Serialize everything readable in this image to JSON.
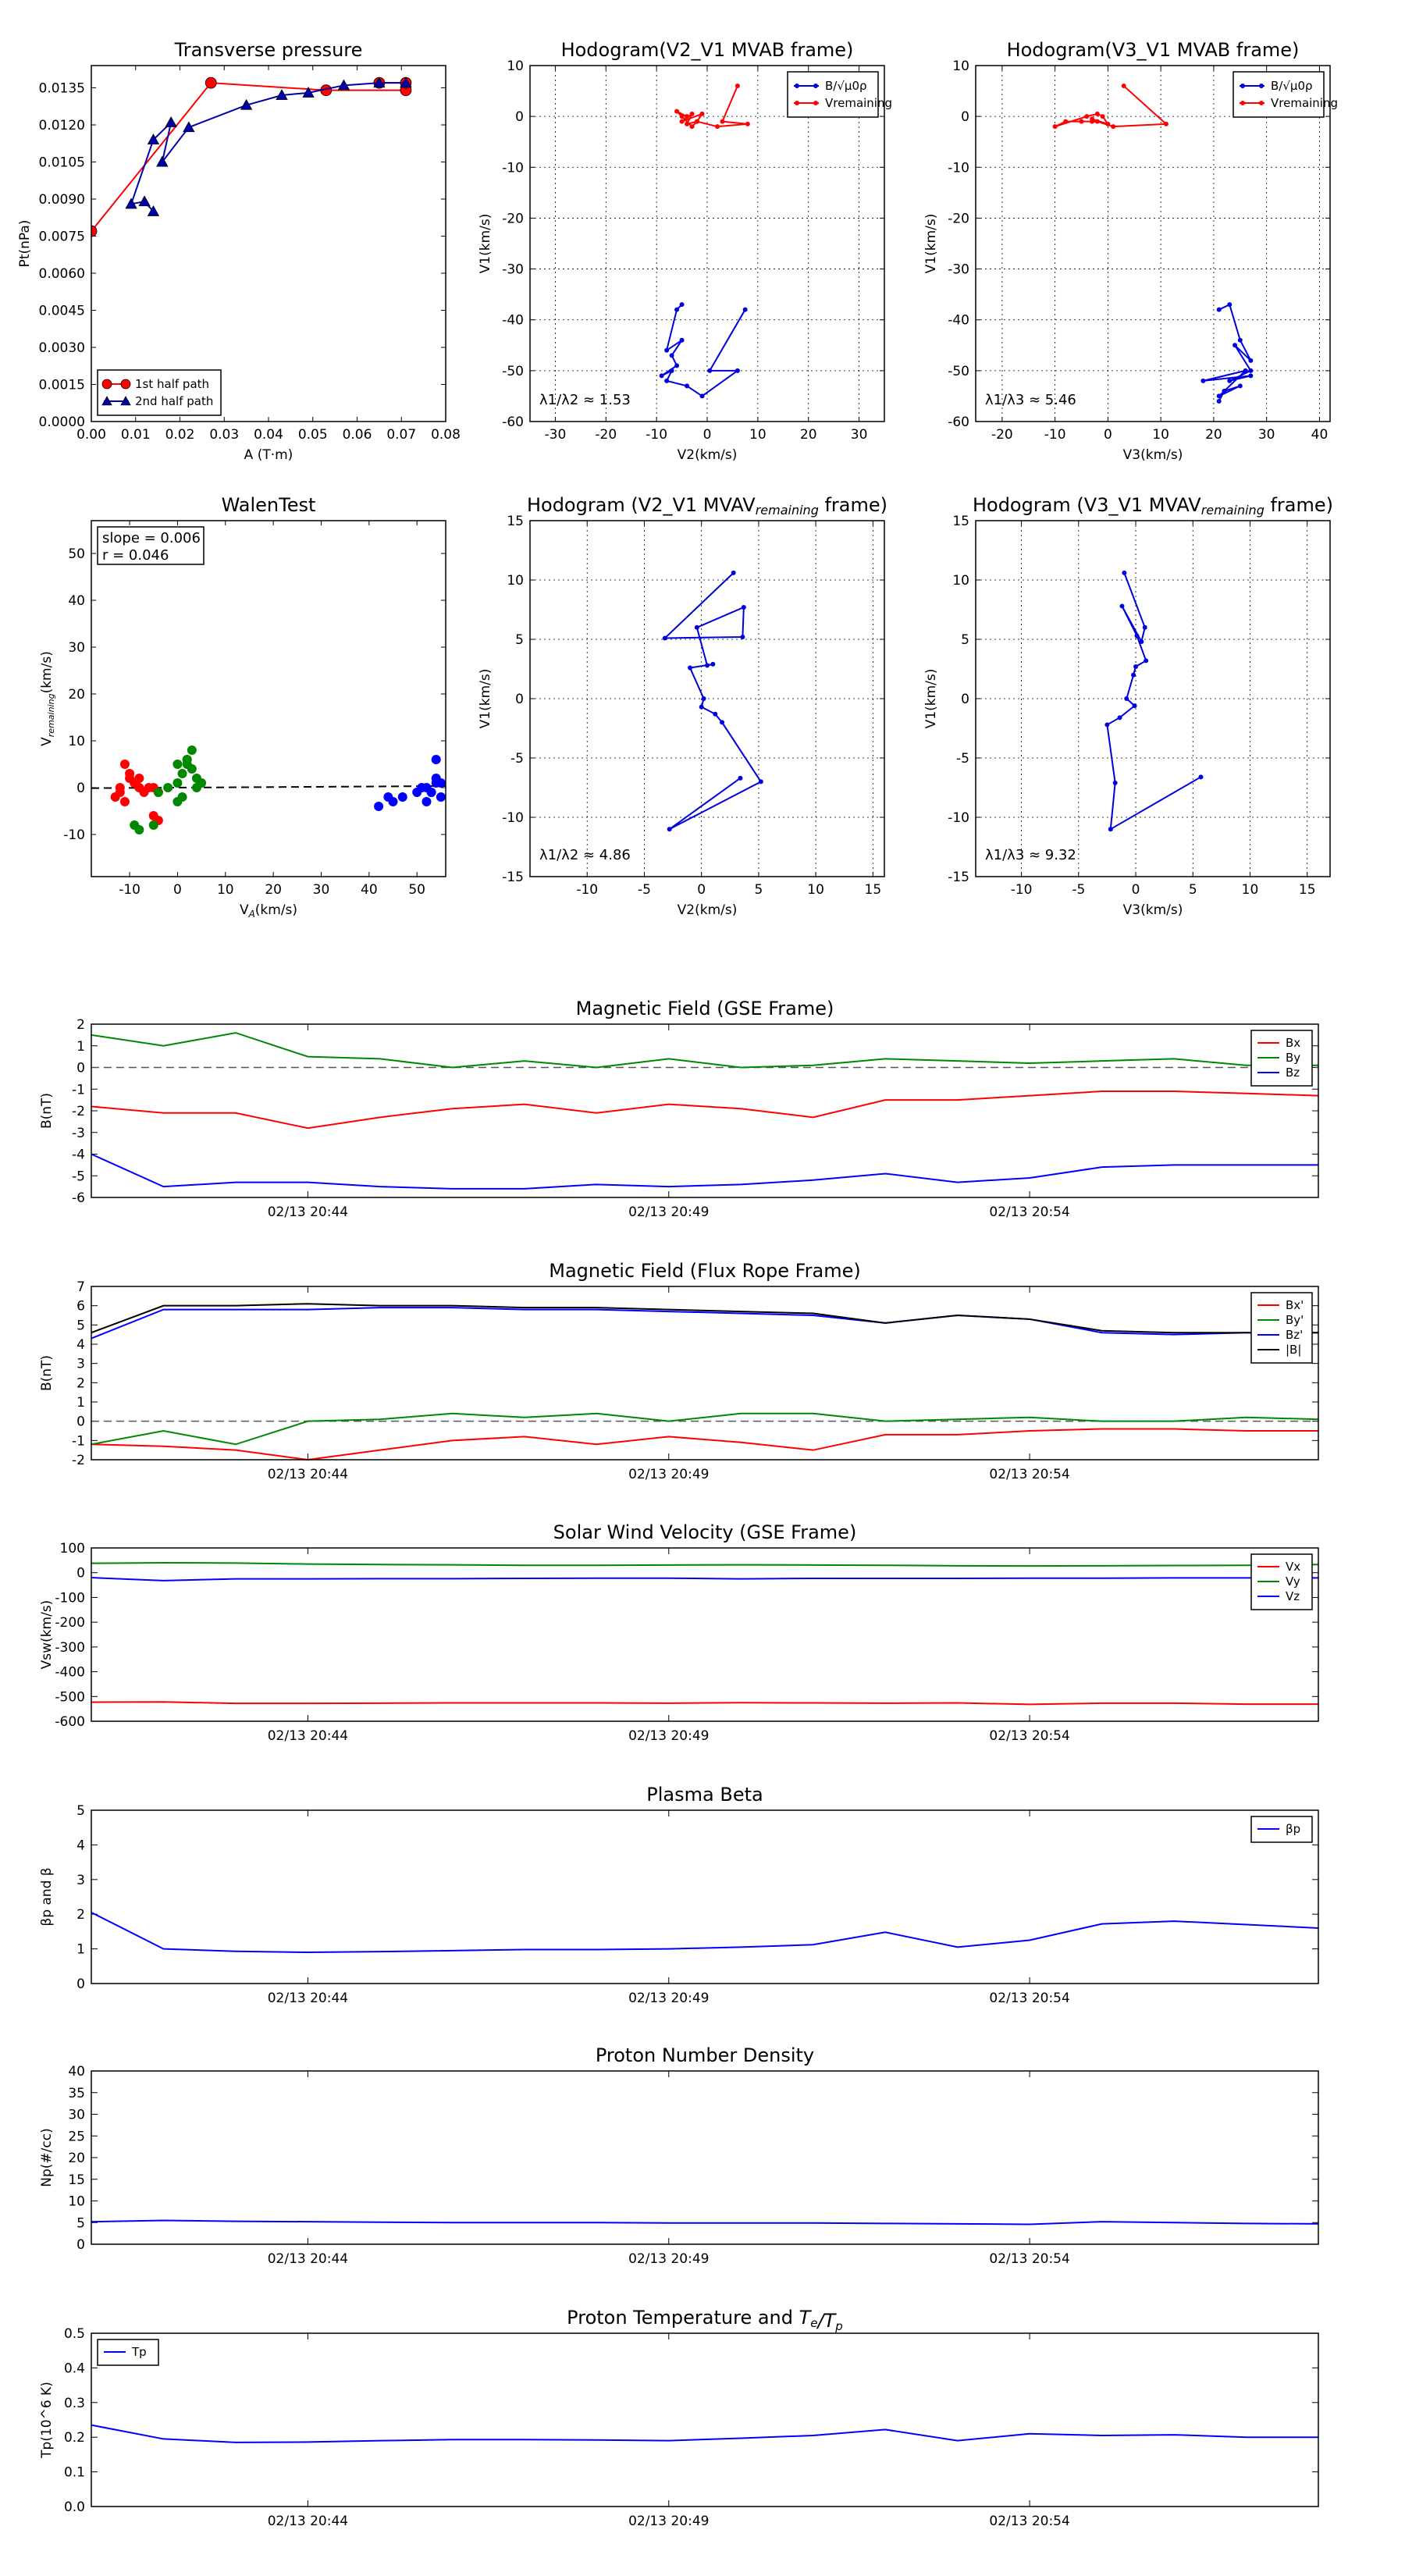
{
  "chart_data": [
    {
      "id": "tp",
      "type": "line",
      "title": "Transverse pressure",
      "xlabel": "A (T·m)",
      "ylabel": "Pt(nPa)",
      "xlim": [
        0,
        0.08
      ],
      "ylim": [
        0,
        0.0144
      ],
      "xticks": [
        "0.00",
        "0.01",
        "0.02",
        "0.03",
        "0.04",
        "0.05",
        "0.06",
        "0.07",
        "0.08"
      ],
      "yticks": [
        "0.0000",
        "0.0015",
        "0.0030",
        "0.0045",
        "0.0060",
        "0.0075",
        "0.0090",
        "0.0105",
        "0.0120",
        "0.0135"
      ],
      "grid": false,
      "legend": "lower-left",
      "series": [
        {
          "name": "1st half path",
          "color": "#ff0000",
          "marker": "circle",
          "x": [
            0.0,
            0.027,
            0.053,
            0.071,
            0.071,
            0.065
          ],
          "y": [
            0.0077,
            0.0137,
            0.0134,
            0.0134,
            0.0137,
            0.0137
          ]
        },
        {
          "name": "2nd half path",
          "color": "#0000aa",
          "marker": "triangle",
          "x": [
            0.014,
            0.012,
            0.009,
            0.014,
            0.018,
            0.016,
            0.022,
            0.035,
            0.043,
            0.049,
            0.057,
            0.065,
            0.071
          ],
          "y": [
            0.0085,
            0.0089,
            0.0088,
            0.0114,
            0.0121,
            0.0105,
            0.0119,
            0.0128,
            0.0132,
            0.0133,
            0.0136,
            0.0137,
            0.0137
          ]
        }
      ]
    },
    {
      "id": "h1",
      "type": "line",
      "title": "Hodogram(V2_V1 MVAB frame)",
      "xlabel": "V2(km/s)",
      "ylabel": "V1(km/s)",
      "xlim": [
        -35,
        35
      ],
      "ylim": [
        -60,
        10
      ],
      "xticks": [
        "-30",
        "-20",
        "-10",
        "0",
        "10",
        "20",
        "30"
      ],
      "yticks": [
        "-60",
        "-50",
        "-40",
        "-30",
        "-20",
        "-10",
        "0",
        "10"
      ],
      "grid": true,
      "legend": "upper-right",
      "annotation": "λ1/λ2 ≈ 1.53",
      "series": [
        {
          "name": "B/√μ0ρ",
          "color": "#0000dd",
          "x": [
            7.5,
            0.5,
            6,
            -1,
            -4,
            -8,
            -7,
            -9,
            -6,
            -7,
            -5,
            -8,
            -6,
            -5
          ],
          "y": [
            -38,
            -50,
            -50,
            -55,
            -53,
            -52,
            -50,
            -51,
            -49,
            -47,
            -44,
            -46,
            -38,
            -37
          ]
        },
        {
          "name": "Vremaining",
          "color": "#ff0000",
          "x": [
            6,
            3,
            8,
            2,
            -2,
            -4,
            -3,
            -5,
            -1,
            -2,
            -3,
            -5,
            -6,
            -4
          ],
          "y": [
            6,
            -1,
            -1.5,
            -2,
            -1,
            -1.5,
            0.5,
            -1,
            0.5,
            -1,
            -2,
            0,
            1,
            0
          ]
        }
      ]
    },
    {
      "id": "h2",
      "type": "line",
      "title": "Hodogram(V3_V1 MVAB frame)",
      "xlabel": "V3(km/s)",
      "ylabel": "V1(km/s)",
      "xlim": [
        -25,
        42
      ],
      "ylim": [
        -60,
        10
      ],
      "xticks": [
        "-20",
        "-10",
        "0",
        "10",
        "20",
        "30",
        "40"
      ],
      "yticks": [
        "-60",
        "-50",
        "-40",
        "-30",
        "-20",
        "-10",
        "0",
        "10"
      ],
      "grid": true,
      "legend": "upper-right",
      "annotation": "λ1/λ3 ≈ 5.46",
      "series": [
        {
          "name": "B/√μ0ρ",
          "color": "#0000dd",
          "x": [
            21,
            23,
            25,
            27,
            24,
            27,
            23,
            27,
            18,
            26,
            21,
            25,
            22,
            21
          ],
          "y": [
            -38,
            -37,
            -44,
            -48,
            -45,
            -50,
            -52,
            -51,
            -52,
            -50,
            -55,
            -53,
            -54,
            -56
          ]
        },
        {
          "name": "Vremaining",
          "color": "#ff0000",
          "x": [
            3,
            11,
            1,
            -2,
            -5,
            -3,
            -8,
            -10,
            -4,
            -2,
            -1,
            0,
            -3
          ],
          "y": [
            6,
            -1.5,
            -2,
            -1,
            -1,
            -1,
            -1,
            -2,
            0,
            0.5,
            0,
            -1.5,
            -0.5
          ]
        }
      ]
    },
    {
      "id": "walen",
      "type": "scatter",
      "title": "WalenTest",
      "xlabel": "VA(km/s)",
      "ylabel": "Vremaining(km/s)",
      "xlim": [
        -18,
        56
      ],
      "ylim": [
        -19,
        57
      ],
      "xticks": [
        "-10",
        "0",
        "10",
        "20",
        "30",
        "40",
        "50"
      ],
      "yticks": [
        "-10",
        "0",
        "10",
        "20",
        "30",
        "40",
        "50"
      ],
      "grid": false,
      "annotation": [
        "slope = 0.006",
        "r = 0.046"
      ],
      "fit_line": {
        "slope": 0.006,
        "intercept": 0.0
      },
      "series": [
        {
          "color": "#ff0000",
          "x": [
            -13,
            -12,
            -11,
            -10,
            -9,
            -8,
            -7,
            -6,
            -5,
            -4,
            -10,
            -9,
            -5,
            -4,
            -8,
            -11,
            -12
          ],
          "y": [
            -2,
            -1,
            5,
            2,
            1,
            0,
            -1,
            0,
            -6,
            -7,
            3,
            1,
            0,
            -1,
            2,
            -3,
            0
          ]
        },
        {
          "color": "#008800",
          "x": [
            -9,
            -8,
            -5,
            -4,
            -2,
            0,
            1,
            2,
            3,
            4,
            5,
            0,
            1,
            2,
            3,
            4,
            0,
            2
          ],
          "y": [
            -8,
            -9,
            -8,
            -1,
            0,
            1,
            3,
            5,
            8,
            2,
            1,
            -3,
            -2,
            6,
            4,
            0,
            5,
            6
          ]
        },
        {
          "color": "#0000ff",
          "x": [
            42,
            44,
            45,
            47,
            50,
            51,
            52,
            53,
            54,
            55,
            54,
            53,
            52,
            55,
            54
          ],
          "y": [
            -4,
            -2,
            -3,
            -2,
            -1,
            0,
            -3,
            -1,
            6,
            1,
            2,
            -1,
            0,
            -2,
            1
          ]
        }
      ]
    },
    {
      "id": "h3",
      "type": "line",
      "title": "Hodogram (V2_V1 MVAVremaining frame)",
      "xlabel": "V2(km/s)",
      "ylabel": "V1(km/s)",
      "xlim": [
        -15,
        16
      ],
      "ylim": [
        -15,
        15
      ],
      "xticks": [
        "-10",
        "-5",
        "0",
        "5",
        "10",
        "15"
      ],
      "yticks": [
        "-15",
        "-10",
        "-5",
        "0",
        "5",
        "10",
        "15"
      ],
      "grid": true,
      "annotation": "λ1/λ2 ≈ 4.86",
      "series": [
        {
          "color": "#0000dd",
          "x": [
            2.8,
            -3.2,
            3.6,
            3.7,
            -0.4,
            0.5,
            1.0,
            -1.0,
            0.2,
            0.0,
            1.2,
            1.8,
            5.2,
            -2.8,
            3.4
          ],
          "y": [
            10.6,
            5.1,
            5.2,
            7.7,
            6.0,
            2.8,
            2.9,
            2.6,
            0.0,
            -0.7,
            -1.3,
            -2.0,
            -7.0,
            -11.0,
            -6.7
          ]
        }
      ]
    },
    {
      "id": "h4",
      "type": "line",
      "title": "Hodogram (V3_V1 MVAVremaining frame)",
      "xlabel": "V3(km/s)",
      "ylabel": "V1(km/s)",
      "xlim": [
        -14,
        17
      ],
      "ylim": [
        -15,
        15
      ],
      "xticks": [
        "-10",
        "-5",
        "0",
        "5",
        "10",
        "15"
      ],
      "yticks": [
        "-15",
        "-10",
        "-5",
        "0",
        "5",
        "10",
        "15"
      ],
      "grid": true,
      "annotation": "λ1/λ3 ≈ 9.32",
      "series": [
        {
          "color": "#0000dd",
          "x": [
            -1.0,
            0.8,
            0.5,
            -1.2,
            0.1,
            0.9,
            0.0,
            -0.2,
            -0.8,
            -0.1,
            -1.4,
            -2.5,
            -1.8,
            -2.2,
            5.7
          ],
          "y": [
            10.6,
            6.0,
            4.8,
            7.8,
            5.3,
            3.2,
            2.7,
            2.0,
            0.0,
            -0.6,
            -1.6,
            -2.2,
            -7.1,
            -11.0,
            -6.6
          ]
        }
      ]
    },
    {
      "id": "mag_gse",
      "type": "line",
      "title": "Magnetic Field (GSE Frame)",
      "ylabel": "B(nT)",
      "ylim": [
        -6,
        2
      ],
      "yticks": [
        "-6",
        "-5",
        "-4",
        "-3",
        "-2",
        "-1",
        "0",
        "1",
        "2"
      ],
      "xticks": [
        "02/13 20:44",
        "02/13 20:49",
        "02/13 20:54"
      ],
      "xtick_pos": [
        3,
        8,
        13
      ],
      "npoints": 18,
      "zero_line": true,
      "legend": "upper-right",
      "series": [
        {
          "name": "Bx",
          "color": "#ff0000",
          "values": [
            -1.8,
            -2.1,
            -2.1,
            -2.8,
            -2.3,
            -1.9,
            -1.7,
            -2.1,
            -1.7,
            -1.9,
            -2.3,
            -1.5,
            -1.5,
            -1.3,
            -1.1,
            -1.1,
            -1.2,
            -1.3
          ]
        },
        {
          "name": "By",
          "color": "#008800",
          "values": [
            1.5,
            1.0,
            1.6,
            0.5,
            0.4,
            0.0,
            0.3,
            0.0,
            0.4,
            0.0,
            0.1,
            0.4,
            0.3,
            0.2,
            0.3,
            0.4,
            0.1,
            0.1
          ]
        },
        {
          "name": "Bz",
          "color": "#0000ff",
          "values": [
            -4.0,
            -5.5,
            -5.3,
            -5.3,
            -5.5,
            -5.6,
            -5.6,
            -5.4,
            -5.5,
            -5.4,
            -5.2,
            -4.9,
            -5.3,
            -5.1,
            -4.6,
            -4.5,
            -4.5,
            -4.5
          ]
        }
      ]
    },
    {
      "id": "mag_fr",
      "type": "line",
      "title": "Magnetic Field (Flux Rope Frame)",
      "ylabel": "B(nT)",
      "ylim": [
        -2,
        7
      ],
      "yticks": [
        "-2",
        "-1",
        "0",
        "1",
        "2",
        "3",
        "4",
        "5",
        "6",
        "7"
      ],
      "xticks": [
        "02/13 20:44",
        "02/13 20:49",
        "02/13 20:54"
      ],
      "xtick_pos": [
        3,
        8,
        13
      ],
      "npoints": 18,
      "zero_line": true,
      "legend": "upper-right",
      "series": [
        {
          "name": "Bx'",
          "color": "#ff0000",
          "values": [
            -1.2,
            -1.3,
            -1.5,
            -2.0,
            -1.5,
            -1.0,
            -0.8,
            -1.2,
            -0.8,
            -1.1,
            -1.5,
            -0.7,
            -0.7,
            -0.5,
            -0.4,
            -0.4,
            -0.5,
            -0.5
          ]
        },
        {
          "name": "By'",
          "color": "#008800",
          "values": [
            -1.2,
            -0.5,
            -1.2,
            0.0,
            0.1,
            0.4,
            0.2,
            0.4,
            0.0,
            0.4,
            0.4,
            0.0,
            0.1,
            0.2,
            0.0,
            0.0,
            0.2,
            0.1
          ]
        },
        {
          "name": "Bz'",
          "color": "#0000ff",
          "values": [
            4.3,
            5.8,
            5.8,
            5.8,
            5.9,
            5.9,
            5.8,
            5.8,
            5.7,
            5.6,
            5.5,
            5.1,
            5.5,
            5.3,
            4.6,
            4.5,
            4.6,
            4.6
          ]
        },
        {
          "name": "|B|",
          "color": "#000000",
          "values": [
            4.6,
            6.0,
            6.0,
            6.1,
            6.0,
            6.0,
            5.9,
            5.9,
            5.8,
            5.7,
            5.6,
            5.1,
            5.5,
            5.3,
            4.7,
            4.6,
            4.6,
            4.6
          ]
        }
      ]
    },
    {
      "id": "vel",
      "type": "line",
      "title": "Solar Wind Velocity (GSE Frame)",
      "ylabel": "Vsw(km/s)",
      "ylim": [
        -600,
        100
      ],
      "yticks": [
        "-600",
        "-500",
        "-400",
        "-300",
        "-200",
        "-100",
        "0",
        "100"
      ],
      "xticks": [
        "02/13 20:44",
        "02/13 20:49",
        "02/13 20:54"
      ],
      "xtick_pos": [
        3,
        8,
        13
      ],
      "npoints": 18,
      "legend": "upper-right",
      "series": [
        {
          "name": "Vx",
          "color": "#ff0000",
          "values": [
            -523,
            -522,
            -528,
            -528,
            -527,
            -526,
            -526,
            -526,
            -527,
            -525,
            -526,
            -527,
            -526,
            -532,
            -527,
            -527,
            -531,
            -531
          ]
        },
        {
          "name": "Vy",
          "color": "#008800",
          "values": [
            38,
            40,
            39,
            35,
            33,
            32,
            30,
            30,
            31,
            32,
            31,
            30,
            28,
            27,
            28,
            29,
            30,
            33
          ]
        },
        {
          "name": "Vz",
          "color": "#0000ff",
          "values": [
            -20,
            -32,
            -25,
            -25,
            -24,
            -24,
            -23,
            -22,
            -22,
            -25,
            -23,
            -23,
            -23,
            -22,
            -22,
            -21,
            -21,
            -21
          ]
        }
      ]
    },
    {
      "id": "beta",
      "type": "line",
      "title": "Plasma Beta",
      "ylabel": "βp and β",
      "ylim": [
        0,
        5
      ],
      "yticks": [
        "0",
        "1",
        "2",
        "3",
        "4",
        "5"
      ],
      "xticks": [
        "02/13 20:44",
        "02/13 20:49",
        "02/13 20:54"
      ],
      "xtick_pos": [
        3,
        8,
        13
      ],
      "npoints": 18,
      "legend": "upper-right",
      "series": [
        {
          "name": "βp",
          "color": "#0000ff",
          "values": [
            2.05,
            1.0,
            0.93,
            0.9,
            0.92,
            0.95,
            0.98,
            0.98,
            1.0,
            1.05,
            1.12,
            1.48,
            1.05,
            1.25,
            1.72,
            1.8,
            1.7,
            1.6
          ]
        }
      ]
    },
    {
      "id": "density",
      "type": "line",
      "title": "Proton Number Density",
      "ylabel": "Np(#/cc)",
      "ylim": [
        0,
        40
      ],
      "yticks": [
        "0",
        "5",
        "10",
        "15",
        "20",
        "25",
        "30",
        "35",
        "40"
      ],
      "xticks": [
        "02/13 20:44",
        "02/13 20:49",
        "02/13 20:54"
      ],
      "xtick_pos": [
        3,
        8,
        13
      ],
      "npoints": 18,
      "series": [
        {
          "color": "#0000ff",
          "values": [
            5.2,
            5.5,
            5.3,
            5.2,
            5.1,
            5.0,
            5.0,
            5.0,
            4.9,
            4.9,
            4.9,
            4.8,
            4.7,
            4.6,
            5.2,
            5.0,
            4.8,
            4.7
          ]
        }
      ]
    },
    {
      "id": "temp",
      "type": "line",
      "title": "Proton Temperature and Te/Tp",
      "ylabel": "Tp(10^6 K)",
      "ylim": [
        0,
        0.5
      ],
      "yticks": [
        "0.0",
        "0.1",
        "0.2",
        "0.3",
        "0.4",
        "0.5"
      ],
      "xticks": [
        "02/13 20:44",
        "02/13 20:49",
        "02/13 20:54"
      ],
      "xtick_pos": [
        3,
        8,
        13
      ],
      "npoints": 18,
      "legend": "upper-left",
      "series": [
        {
          "name": "Tp",
          "color": "#0000ff",
          "values": [
            0.235,
            0.195,
            0.185,
            0.186,
            0.19,
            0.193,
            0.193,
            0.192,
            0.19,
            0.197,
            0.205,
            0.222,
            0.19,
            0.21,
            0.205,
            0.207,
            0.2,
            0.2
          ]
        }
      ]
    }
  ]
}
